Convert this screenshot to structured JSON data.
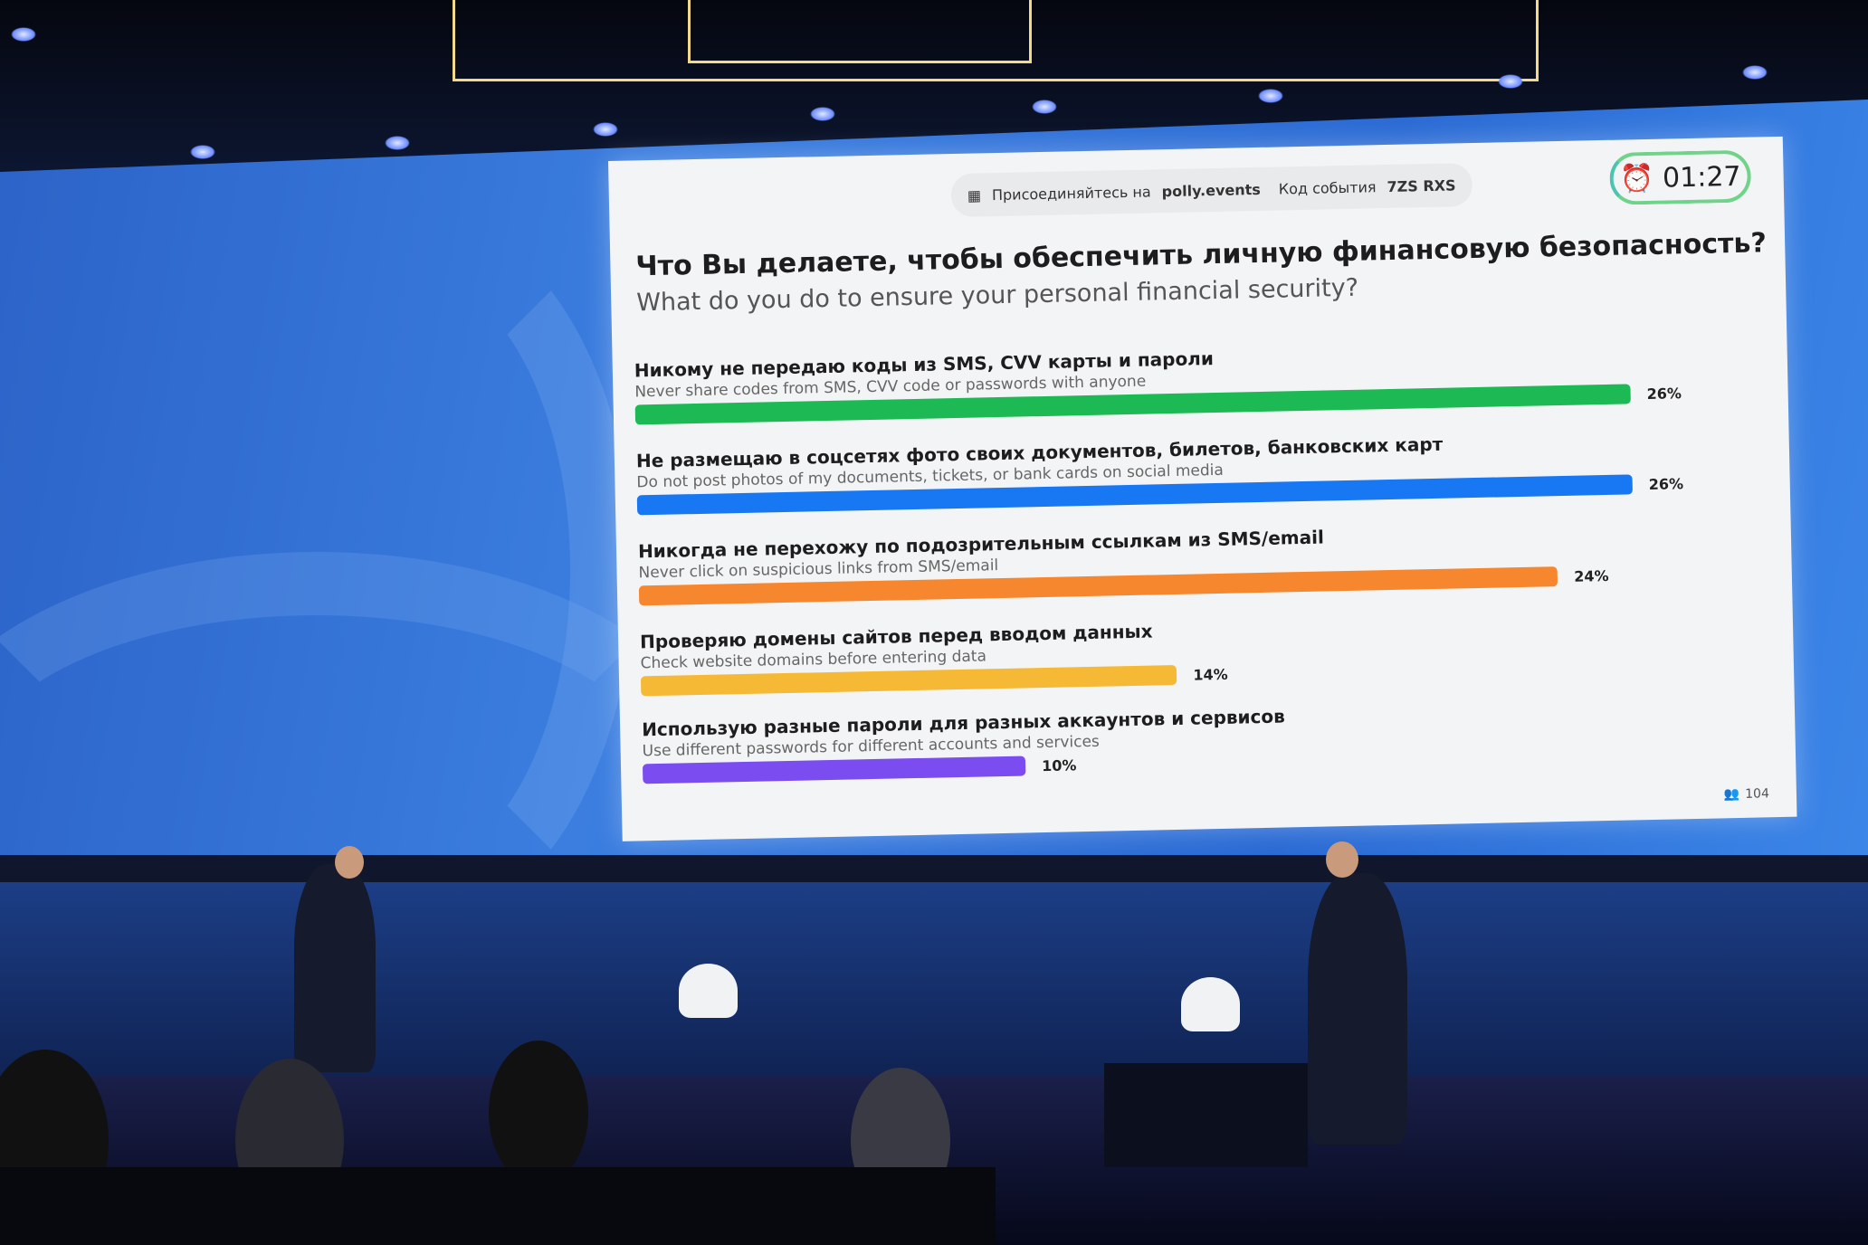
{
  "join": {
    "prefix": "Присоединяйтесь на",
    "site": "polly.events",
    "code_label": "Код события",
    "code": "7ZS RXS",
    "icon": "qr-code-icon"
  },
  "timer": {
    "value": "01:27",
    "icon": "alarm-clock-icon"
  },
  "question": {
    "ru": "Что Вы делаете, чтобы обеспечить личную финансовую безопасность?",
    "en": "What do you do to ensure your personal financial security?"
  },
  "options": [
    {
      "ru": "Никому не передаю коды из SMS, CVV карты и пароли",
      "en": "Never share codes from SMS, CVV code or passwords with anyone",
      "percent": 26,
      "label": "26%",
      "color": "#1db954"
    },
    {
      "ru": "Не размещаю в соцсетях фото своих документов, билетов, банковских карт",
      "en": "Do not post photos of my documents, tickets, or bank cards on social media",
      "percent": 26,
      "label": "26%",
      "color": "#1877f2"
    },
    {
      "ru": "Никогда не перехожу по подозрительным ссылкам из SMS/email",
      "en": "Never click on suspicious links from SMS/email",
      "percent": 24,
      "label": "24%",
      "color": "#f6872f"
    },
    {
      "ru": "Проверяю домены сайтов перед вводом данных",
      "en": "Check website domains before entering data",
      "percent": 14,
      "label": "14%",
      "color": "#f5b935"
    },
    {
      "ru": "Использую разные пароли для разных аккаунтов и сервисов",
      "en": "Use different passwords for different accounts and services",
      "percent": 10,
      "label": "10%",
      "color": "#7b4cf0"
    }
  ],
  "participants": {
    "count": "104",
    "icon": "participants-icon"
  }
}
